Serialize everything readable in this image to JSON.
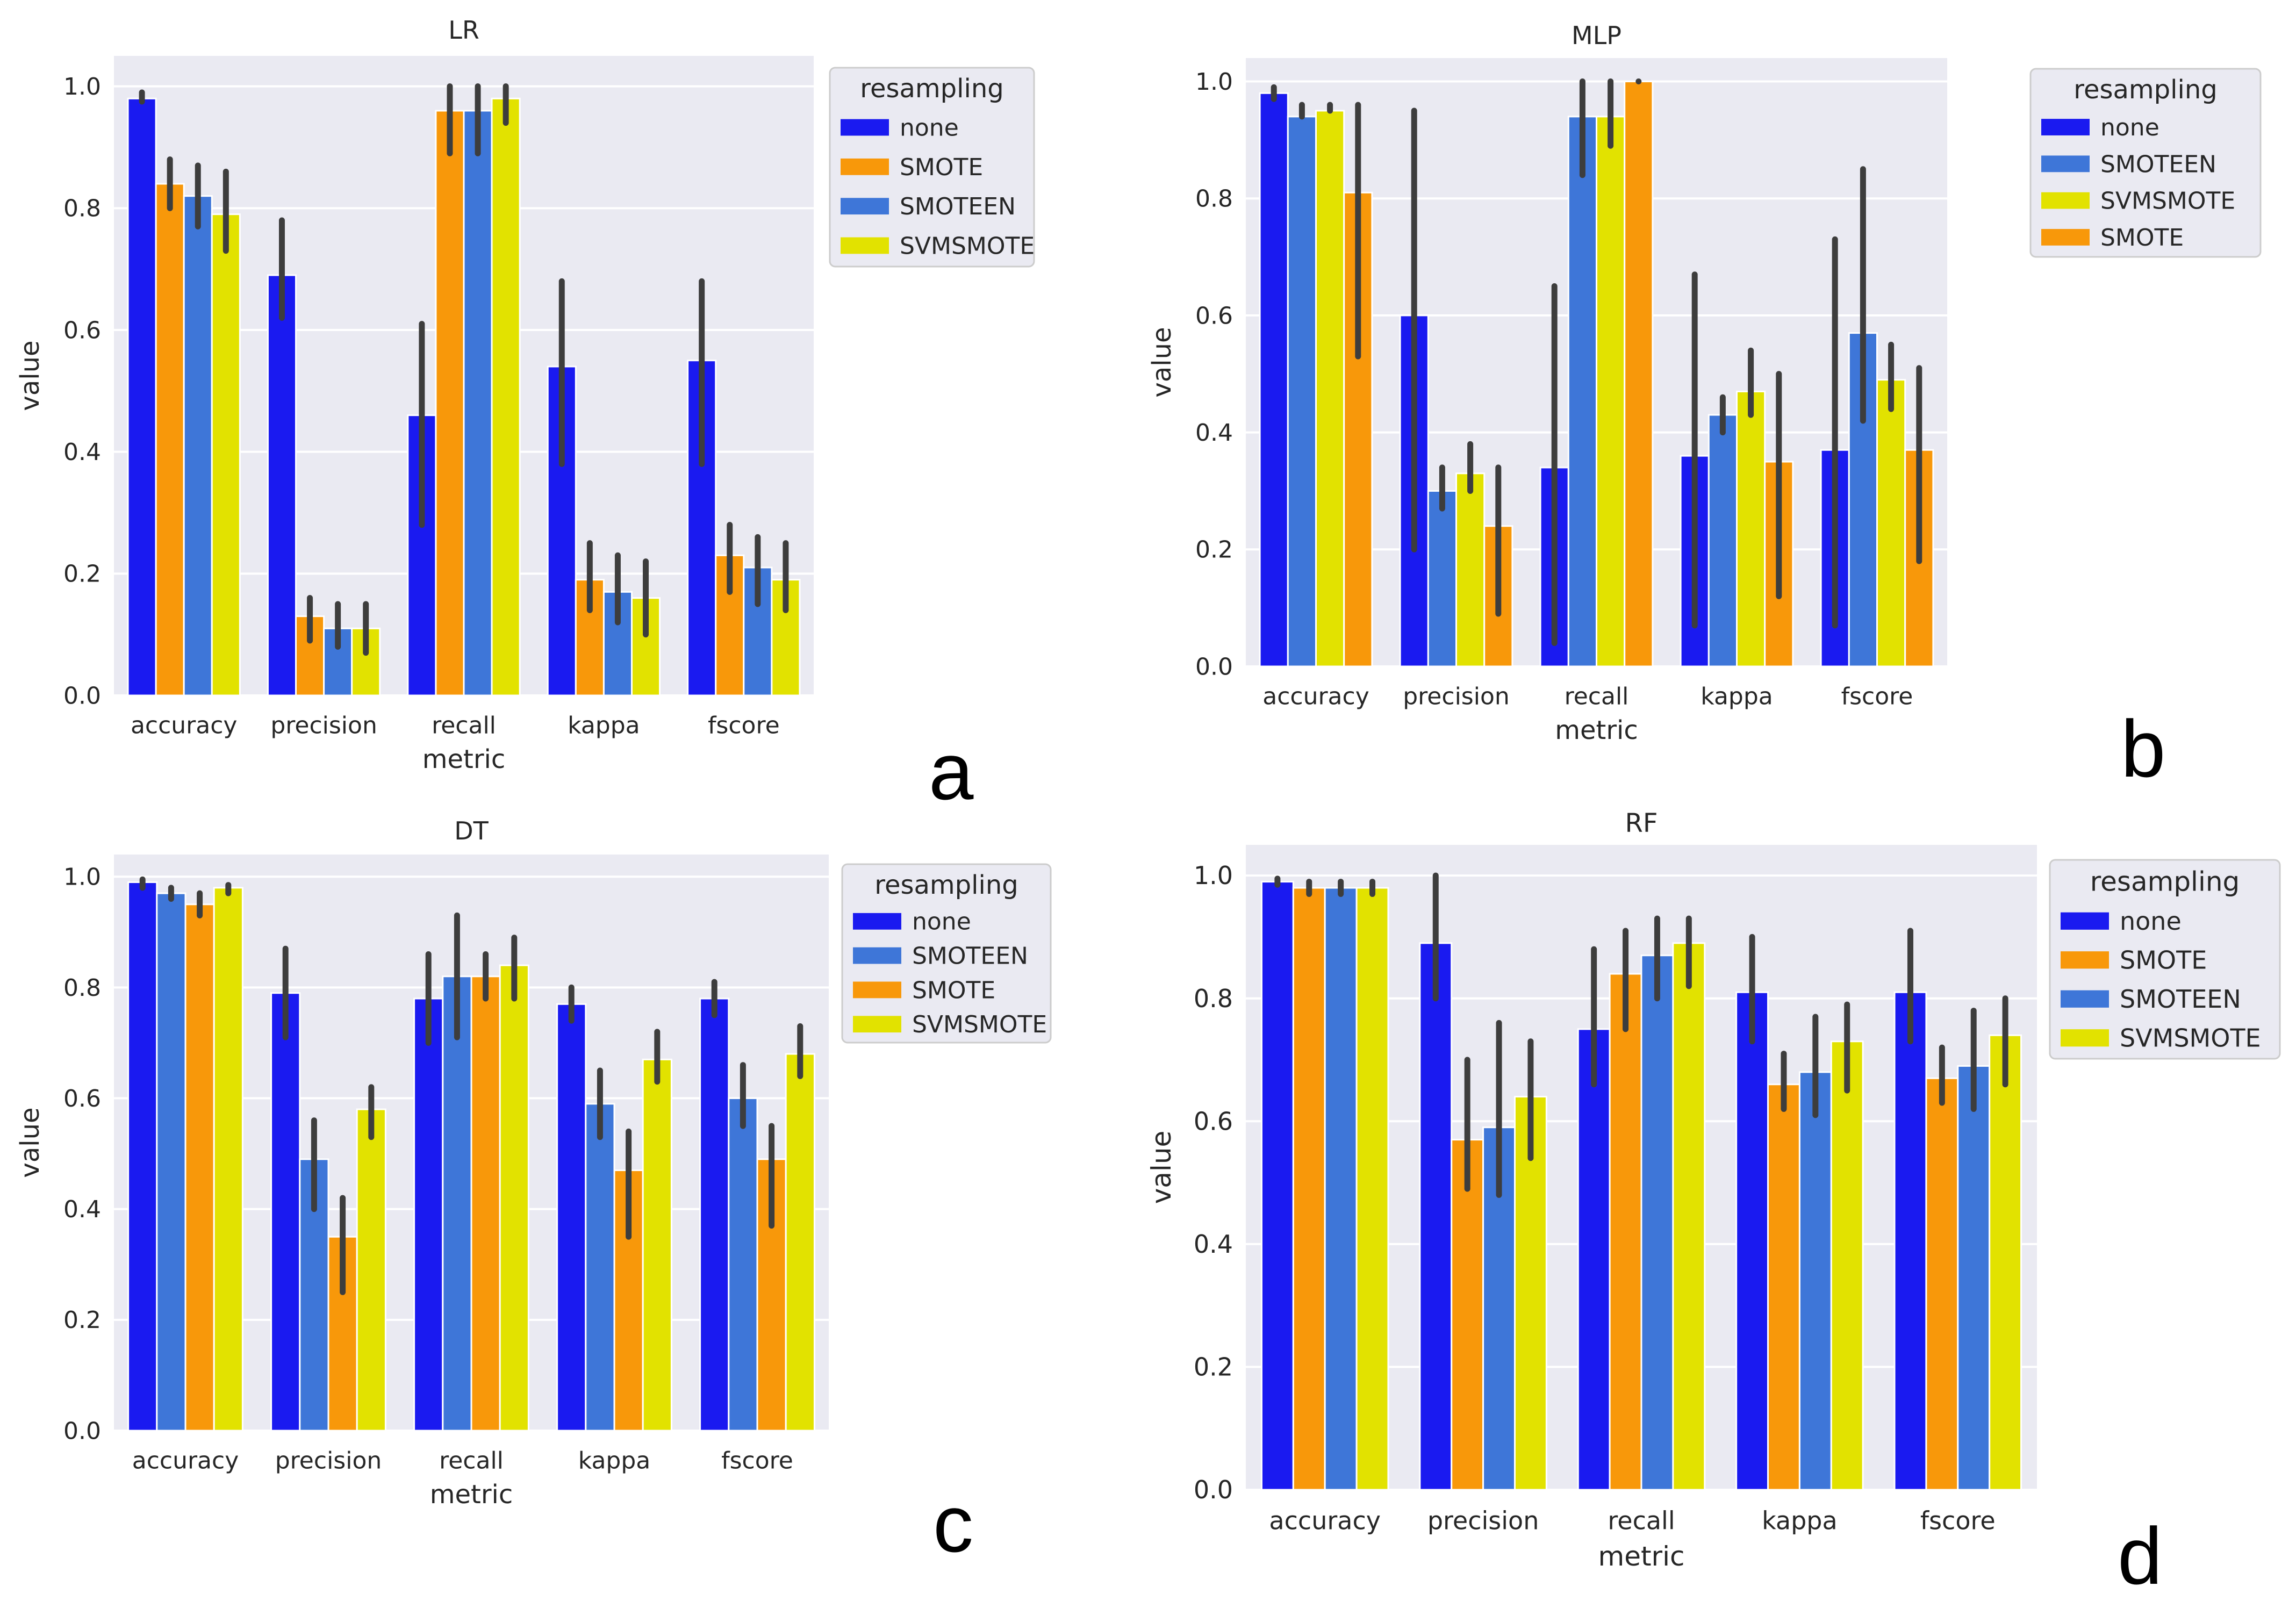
{
  "colors": {
    "none": "#1a1af0",
    "SMOTE": "#f8980a",
    "SMOTEEN": "#3e76d8",
    "SVMSMOTE": "#e2e200"
  },
  "panel_letters": [
    "a",
    "b",
    "c",
    "d"
  ],
  "chart_data": [
    {
      "type": "bar",
      "title": "LR",
      "xlabel": "metric",
      "ylabel": "value",
      "ylim": [
        0,
        1.05
      ],
      "yticks": [
        "0.0",
        "0.2",
        "0.4",
        "0.6",
        "0.8",
        "1.0"
      ],
      "legend_title": "resampling",
      "legend_position": "outside-right",
      "categories": [
        "accuracy",
        "precision",
        "recall",
        "kappa",
        "fscore"
      ],
      "series": [
        {
          "name": "none",
          "values": [
            0.98,
            0.69,
            0.46,
            0.54,
            0.55
          ],
          "err_low": [
            0.975,
            0.62,
            0.28,
            0.38,
            0.38
          ],
          "err_high": [
            0.99,
            0.78,
            0.61,
            0.68,
            0.68
          ]
        },
        {
          "name": "SMOTE",
          "values": [
            0.84,
            0.13,
            0.96,
            0.19,
            0.23
          ],
          "err_low": [
            0.8,
            0.09,
            0.89,
            0.14,
            0.17
          ],
          "err_high": [
            0.88,
            0.16,
            1.0,
            0.25,
            0.28
          ]
        },
        {
          "name": "SMOTEEN",
          "values": [
            0.82,
            0.11,
            0.96,
            0.17,
            0.21
          ],
          "err_low": [
            0.77,
            0.08,
            0.89,
            0.12,
            0.15
          ],
          "err_high": [
            0.87,
            0.15,
            1.0,
            0.23,
            0.26
          ]
        },
        {
          "name": "SVMSMOTE",
          "values": [
            0.79,
            0.11,
            0.98,
            0.16,
            0.19
          ],
          "err_low": [
            0.73,
            0.07,
            0.94,
            0.1,
            0.14
          ],
          "err_high": [
            0.86,
            0.15,
            1.0,
            0.22,
            0.25
          ]
        }
      ]
    },
    {
      "type": "bar",
      "title": "MLP",
      "xlabel": "metric",
      "ylabel": "value",
      "ylim": [
        0,
        1.04
      ],
      "yticks": [
        "0.0",
        "0.2",
        "0.4",
        "0.6",
        "0.8",
        "1.0"
      ],
      "legend_title": "resampling",
      "legend_position": "outside-right",
      "categories": [
        "accuracy",
        "precision",
        "recall",
        "kappa",
        "fscore"
      ],
      "series": [
        {
          "name": "none",
          "values": [
            0.98,
            0.6,
            0.34,
            0.36,
            0.37
          ],
          "err_low": [
            0.97,
            0.2,
            0.04,
            0.07,
            0.07
          ],
          "err_high": [
            0.99,
            0.95,
            0.65,
            0.67,
            0.73
          ]
        },
        {
          "name": "SMOTEEN",
          "values": [
            0.94,
            0.3,
            0.94,
            0.43,
            0.57
          ],
          "err_low": [
            0.94,
            0.27,
            0.84,
            0.4,
            0.42
          ],
          "err_high": [
            0.96,
            0.34,
            1.0,
            0.46,
            0.85
          ]
        },
        {
          "name": "SVMSMOTE",
          "values": [
            0.95,
            0.33,
            0.94,
            0.47,
            0.49
          ],
          "err_low": [
            0.95,
            0.3,
            0.89,
            0.43,
            0.44
          ],
          "err_high": [
            0.96,
            0.38,
            1.0,
            0.54,
            0.55
          ]
        },
        {
          "name": "SMOTE",
          "values": [
            0.81,
            0.24,
            1.0,
            0.35,
            0.37
          ],
          "err_low": [
            0.53,
            0.09,
            1.0,
            0.12,
            0.18
          ],
          "err_high": [
            0.96,
            0.34,
            1.0,
            0.5,
            0.51
          ]
        }
      ]
    },
    {
      "type": "bar",
      "title": "DT",
      "xlabel": "metric",
      "ylabel": "value",
      "ylim": [
        0,
        1.04
      ],
      "yticks": [
        "0.0",
        "0.2",
        "0.4",
        "0.6",
        "0.8",
        "1.0"
      ],
      "legend_title": "resampling",
      "legend_position": "outside-right",
      "categories": [
        "accuracy",
        "precision",
        "recall",
        "kappa",
        "fscore"
      ],
      "series": [
        {
          "name": "none",
          "values": [
            0.99,
            0.79,
            0.78,
            0.77,
            0.78
          ],
          "err_low": [
            0.98,
            0.71,
            0.7,
            0.74,
            0.75
          ],
          "err_high": [
            0.995,
            0.87,
            0.86,
            0.8,
            0.81
          ]
        },
        {
          "name": "SMOTEEN",
          "values": [
            0.97,
            0.49,
            0.82,
            0.59,
            0.6
          ],
          "err_low": [
            0.96,
            0.4,
            0.71,
            0.53,
            0.55
          ],
          "err_high": [
            0.98,
            0.56,
            0.93,
            0.65,
            0.66
          ]
        },
        {
          "name": "SMOTE",
          "values": [
            0.95,
            0.35,
            0.82,
            0.47,
            0.49
          ],
          "err_low": [
            0.93,
            0.25,
            0.78,
            0.35,
            0.37
          ],
          "err_high": [
            0.97,
            0.42,
            0.86,
            0.54,
            0.55
          ]
        },
        {
          "name": "SVMSMOTE",
          "values": [
            0.98,
            0.58,
            0.84,
            0.67,
            0.68
          ],
          "err_low": [
            0.97,
            0.53,
            0.78,
            0.63,
            0.64
          ],
          "err_high": [
            0.985,
            0.62,
            0.89,
            0.72,
            0.73
          ]
        }
      ]
    },
    {
      "type": "bar",
      "title": "RF",
      "xlabel": "metric",
      "ylabel": "value",
      "ylim": [
        0,
        1.05
      ],
      "yticks": [
        "0.0",
        "0.2",
        "0.4",
        "0.6",
        "0.8",
        "1.0"
      ],
      "legend_title": "resampling",
      "legend_position": "outside-right",
      "categories": [
        "accuracy",
        "precision",
        "recall",
        "kappa",
        "fscore"
      ],
      "series": [
        {
          "name": "none",
          "values": [
            0.99,
            0.89,
            0.75,
            0.81,
            0.81
          ],
          "err_low": [
            0.985,
            0.8,
            0.66,
            0.73,
            0.73
          ],
          "err_high": [
            0.995,
            1.0,
            0.88,
            0.9,
            0.91
          ]
        },
        {
          "name": "SMOTE",
          "values": [
            0.98,
            0.57,
            0.84,
            0.66,
            0.67
          ],
          "err_low": [
            0.97,
            0.49,
            0.75,
            0.62,
            0.63
          ],
          "err_high": [
            0.99,
            0.7,
            0.91,
            0.71,
            0.72
          ]
        },
        {
          "name": "SMOTEEN",
          "values": [
            0.98,
            0.59,
            0.87,
            0.68,
            0.69
          ],
          "err_low": [
            0.97,
            0.48,
            0.8,
            0.61,
            0.62
          ],
          "err_high": [
            0.99,
            0.76,
            0.93,
            0.77,
            0.78
          ]
        },
        {
          "name": "SVMSMOTE",
          "values": [
            0.98,
            0.64,
            0.89,
            0.73,
            0.74
          ],
          "err_low": [
            0.97,
            0.54,
            0.82,
            0.65,
            0.66
          ],
          "err_high": [
            0.99,
            0.73,
            0.93,
            0.79,
            0.8
          ]
        }
      ]
    }
  ]
}
